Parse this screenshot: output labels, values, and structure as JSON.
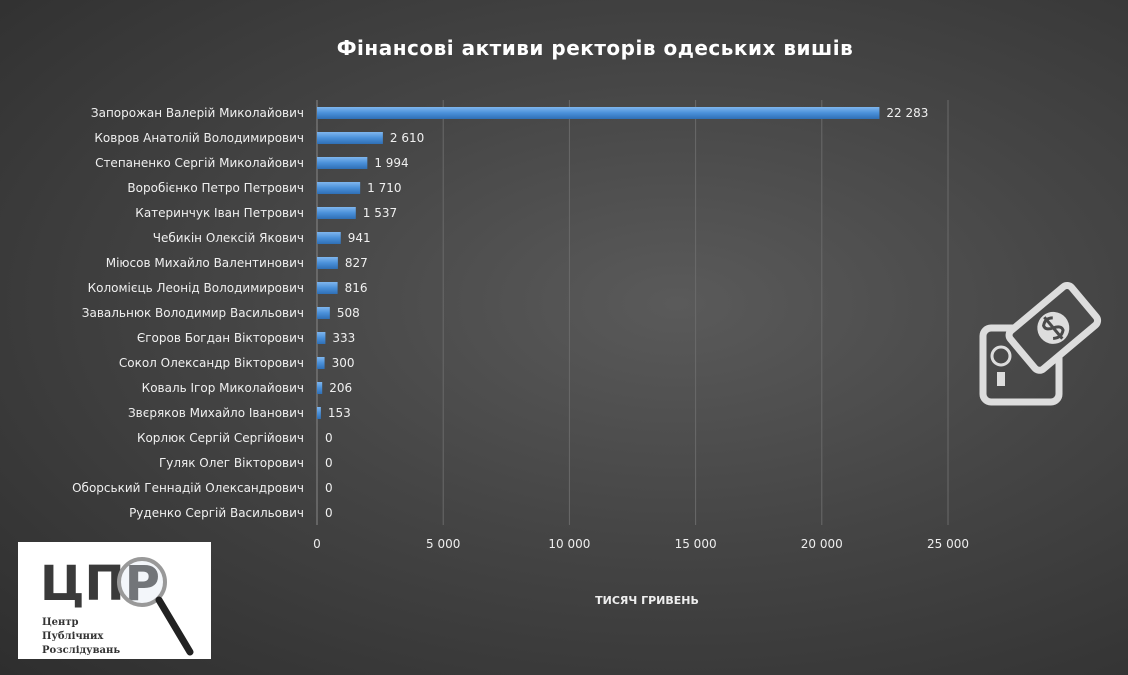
{
  "chart_data": {
    "type": "bar",
    "orientation": "horizontal",
    "title": "Фінансові активи ректорів одеських вишів",
    "xlabel": "ТИСЯЧ ГРИВЕНЬ",
    "ylabel": "",
    "xlim": [
      0,
      25000
    ],
    "xticks": [
      0,
      5000,
      10000,
      15000,
      20000,
      25000
    ],
    "xtick_labels": [
      "0",
      "5 000",
      "10 000",
      "15 000",
      "20 000",
      "25 000"
    ],
    "grid": true,
    "categories": [
      "Запорожан Валерій Миколайович",
      "Ковров Анатолій Володимирович",
      "Степаненко Сергій Миколайович",
      "Воробієнко Петро Петрович",
      "Катеринчук Іван Петрович",
      "Чебикін Олексій Якович",
      "Міюсов Михайло Валентинович",
      "Коломієць Леонід Володимирович",
      "Завальнюк Володимир Васильович",
      "Єгоров Богдан Вікторович",
      "Сокол Олександр Вікторович",
      "Коваль Ігор Миколайович",
      "Звєряков Михайло Іванович",
      "Корлюк Сергій Сергійович",
      "Гуляк Олег Вікторович",
      "Оборський Геннадій Олександрович",
      "Руденко Сергій Васильович"
    ],
    "values": [
      22283,
      2610,
      1994,
      1710,
      1537,
      941,
      827,
      816,
      508,
      333,
      300,
      206,
      153,
      0,
      0,
      0,
      0
    ],
    "data_labels": [
      "22 283",
      "2 610",
      "1 994",
      "1 710",
      "1 537",
      "941",
      "827",
      "816",
      "508",
      "333",
      "300",
      "206",
      "153",
      "0",
      "0",
      "0",
      "0"
    ],
    "bar_color": "#4a90d9"
  },
  "logo": {
    "big": "ЦПР",
    "line1": "Центр",
    "line2": "Публічних",
    "line3": "Розслідувань"
  },
  "icons": {
    "decor": "safe-money-icon"
  }
}
